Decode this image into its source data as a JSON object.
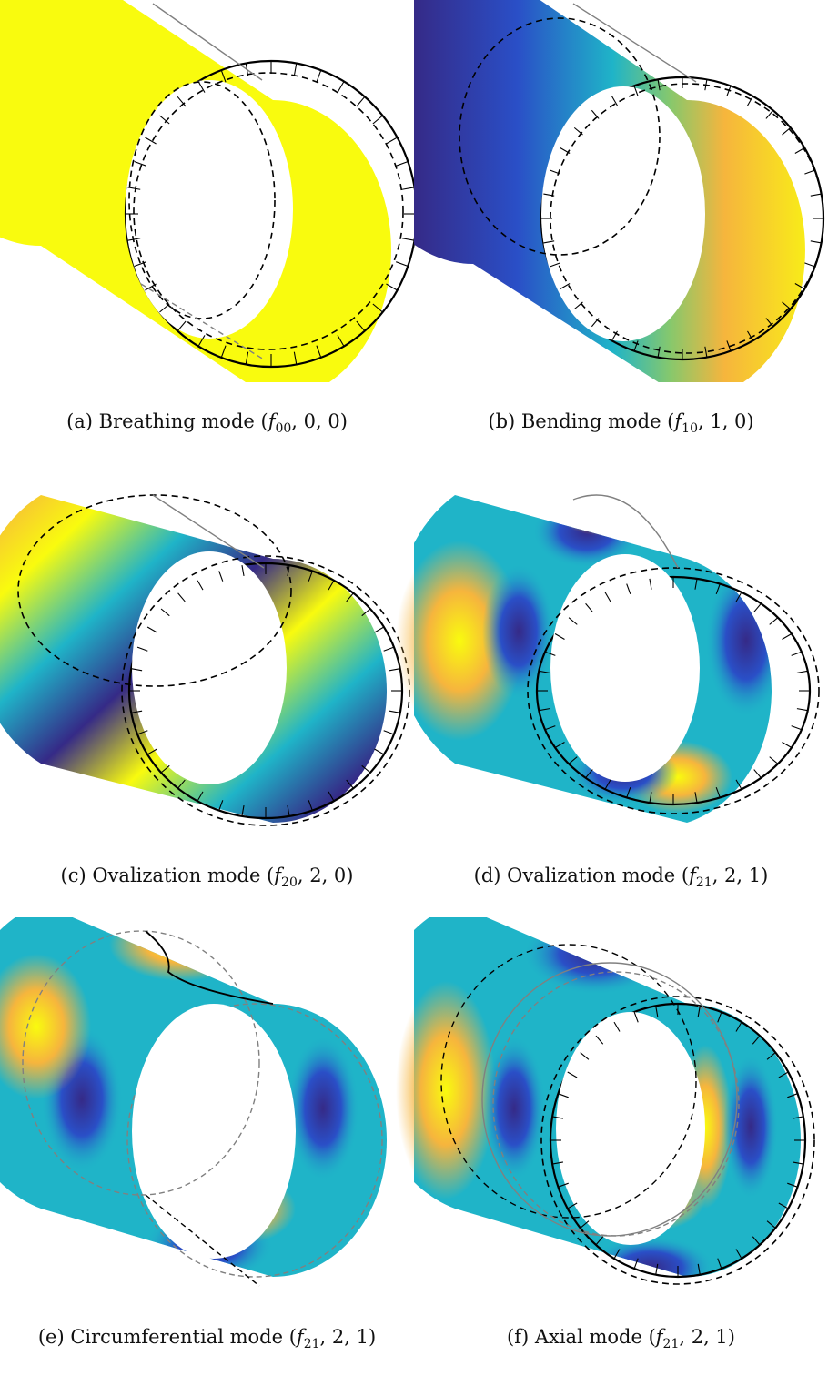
{
  "figures": [
    {
      "id": "a",
      "caption": {
        "lead": "(a) Breathing mode (",
        "sym": "f",
        "sub": "00",
        "tail": ", 0, 0)"
      },
      "coloring": "uniform"
    },
    {
      "id": "b",
      "caption": {
        "lead": "(b) Bending mode (",
        "sym": "f",
        "sub": "10",
        "tail": ", 1, 0)"
      },
      "coloring": "bending"
    },
    {
      "id": "c",
      "caption": {
        "lead": "(c) Ovalization mode (",
        "sym": "f",
        "sub": "20",
        "tail": ", 2, 0)"
      },
      "coloring": "bands"
    },
    {
      "id": "d",
      "caption": {
        "lead": "(d) Ovalization mode (",
        "sym": "f",
        "sub": "21",
        "tail": ", 2, 1)"
      },
      "coloring": "blobs"
    },
    {
      "id": "e",
      "caption": {
        "lead": "(e) Circumferential mode (",
        "sym": "f",
        "sub": "21",
        "tail": ", 2, 1)"
      },
      "coloring": "blobs"
    },
    {
      "id": "f",
      "caption": {
        "lead": "(f) Axial mode (",
        "sym": "f",
        "sub": "21",
        "tail": ", 2, 1)"
      },
      "coloring": "blobs"
    }
  ],
  "colors": {
    "colormap_low": "#352a87",
    "colormap_mid": "#1fb4c8",
    "colormap_high": "#f9fb0e",
    "colormap_orange": "#f6b53d",
    "outline": "#000000",
    "guide": "#808080"
  }
}
